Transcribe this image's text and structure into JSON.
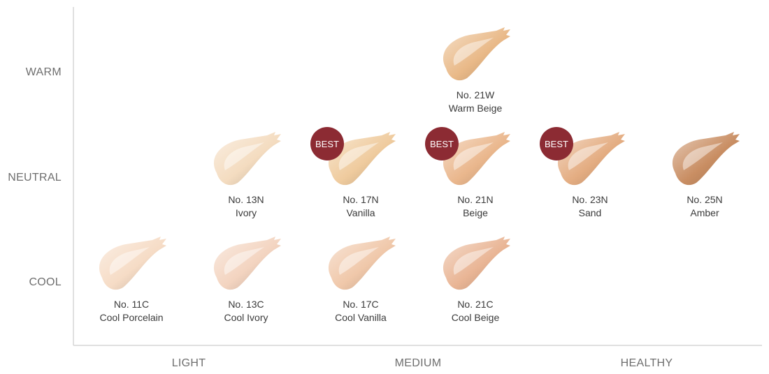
{
  "chart_data": {
    "type": "scatter",
    "x_categories": [
      "LIGHT",
      "MEDIUM",
      "HEALTHY"
    ],
    "y_categories": [
      "WARM",
      "NEUTRAL",
      "COOL"
    ],
    "badge_text": "BEST",
    "points": [
      {
        "code": "No. 21W",
        "name": "Warm Beige",
        "row": "WARM",
        "col": 3,
        "color": "#e9b988",
        "best": false
      },
      {
        "code": "No. 13N",
        "name": "Ivory",
        "row": "NEUTRAL",
        "col": 1,
        "color": "#f4dcc0",
        "best": false
      },
      {
        "code": "No. 17N",
        "name": "Vanilla",
        "row": "NEUTRAL",
        "col": 2,
        "color": "#efcb9e",
        "best": true
      },
      {
        "code": "No. 21N",
        "name": "Beige",
        "row": "NEUTRAL",
        "col": 3,
        "color": "#eab78d",
        "best": true
      },
      {
        "code": "No. 23N",
        "name": "Sand",
        "row": "NEUTRAL",
        "col": 4,
        "color": "#e4ad82",
        "best": true
      },
      {
        "code": "No. 25N",
        "name": "Amber",
        "row": "NEUTRAL",
        "col": 5,
        "color": "#c98e63",
        "best": false
      },
      {
        "code": "No. 11C",
        "name": "Cool Porcelain",
        "row": "COOL",
        "col": 0,
        "color": "#f6dcc6",
        "best": false
      },
      {
        "code": "No. 13C",
        "name": "Cool Ivory",
        "row": "COOL",
        "col": 1,
        "color": "#f3d4c0",
        "best": false
      },
      {
        "code": "No. 17C",
        "name": "Cool Vanilla",
        "row": "COOL",
        "col": 2,
        "color": "#f0c8aa",
        "best": false
      },
      {
        "code": "No. 21C",
        "name": "Cool Beige",
        "row": "COOL",
        "col": 3,
        "color": "#e9b595",
        "best": false
      }
    ],
    "grid": false,
    "legend": "none"
  },
  "colors": {
    "axis": "#d6d6d6",
    "badge": "#8c2b33",
    "axis_text": "#6e6e6e",
    "label_text": "#3a3a3a"
  }
}
